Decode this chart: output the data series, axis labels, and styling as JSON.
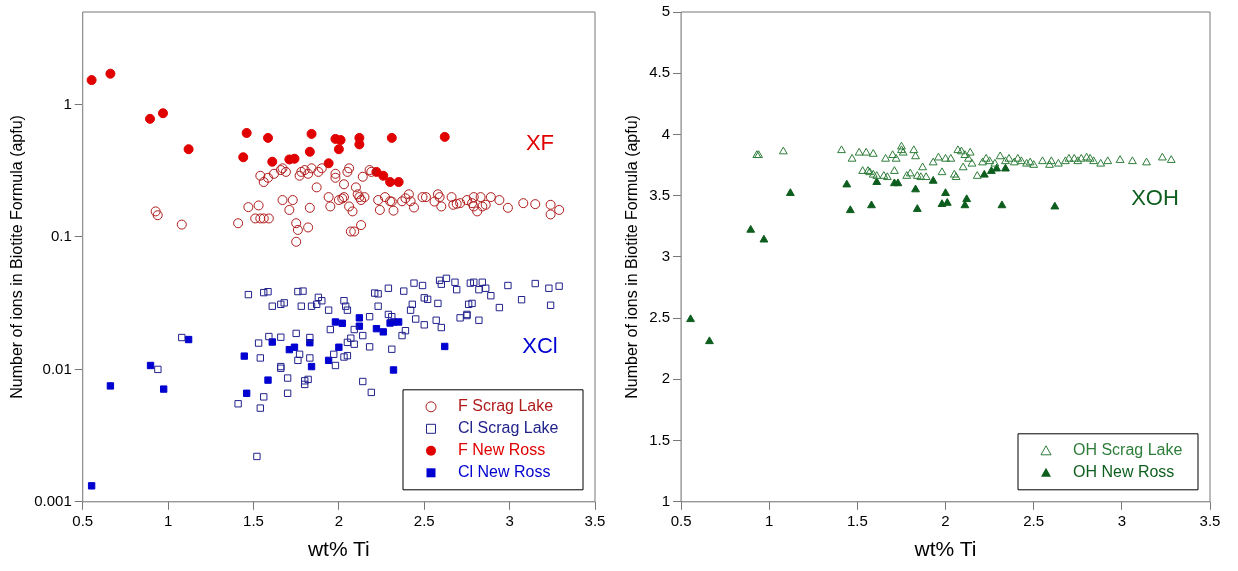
{
  "chart_data": [
    {
      "type": "scatter",
      "xlabel": "wt% Ti",
      "ylabel": "Number of ions in Biotite Formula (apfu)",
      "log": "y",
      "xlim": [
        0.5,
        3.5
      ],
      "xticks": [
        0.5,
        1,
        1.5,
        2,
        2.5,
        3,
        3.5
      ],
      "ylim": [
        0.001,
        5
      ],
      "yticks": [
        0.001,
        0.01,
        0.1,
        1
      ],
      "grid": false,
      "legend": "bottom right",
      "annotations": [
        "XF",
        "XCl"
      ],
      "series": [
        {
          "name": "F Scrag Lake",
          "color": "#b01c1c",
          "marker": "circle",
          "x": [
            0.927,
            0.939,
            1.08,
            1.41,
            1.47,
            1.53,
            1.51,
            1.54,
            1.56,
            1.59,
            1.54,
            1.56,
            1.585,
            1.62,
            1.66,
            1.67,
            1.69,
            1.67,
            1.71,
            1.73,
            1.75,
            1.76,
            1.75,
            1.77,
            1.78,
            1.8,
            1.82,
            1.82,
            1.83,
            1.84,
            1.87,
            1.88,
            1.9,
            1.94,
            1.95,
            1.98,
            1.98,
            2.0,
            2.02,
            2.03,
            2.03,
            2.05,
            2.06,
            2.06,
            2.08,
            2.07,
            2.09,
            2.1,
            2.11,
            2.12,
            2.13,
            2.15,
            2.13,
            2.14,
            2.18,
            2.19,
            2.23,
            2.24,
            2.27,
            2.3,
            2.31,
            2.32,
            2.37,
            2.39,
            2.41,
            2.42,
            2.44,
            2.49,
            2.51,
            2.56,
            2.58,
            2.59,
            2.6,
            2.66,
            2.67,
            2.69,
            2.71,
            2.75,
            2.78,
            2.79,
            2.83,
            2.79,
            2.81,
            2.84,
            2.86,
            2.89,
            2.94,
            2.99,
            3.08,
            3.15,
            3.24,
            3.24,
            3.29
          ],
          "values": [
            0.156,
            0.146,
            0.124,
            0.127,
            0.168,
            0.173,
            0.138,
            0.138,
            0.138,
            0.138,
            0.29,
            0.26,
            0.28,
            0.3,
            0.32,
            0.33,
            0.31,
            0.19,
            0.16,
            0.19,
            0.127,
            0.113,
            0.092,
            0.29,
            0.31,
            0.32,
            0.3,
            0.118,
            0.166,
            0.33,
            0.237,
            0.31,
            0.33,
            0.2,
            0.17,
            0.3,
            0.28,
            0.19,
            0.195,
            0.2,
            0.25,
            0.31,
            0.33,
            0.17,
            0.156,
            0.11,
            0.11,
            0.237,
            0.21,
            0.2,
            0.19,
            0.2,
            0.123,
            0.285,
            0.32,
            0.31,
            0.19,
            0.16,
            0.2,
            0.186,
            0.185,
            0.158,
            0.186,
            0.196,
            0.21,
            0.186,
            0.167,
            0.2,
            0.2,
            0.185,
            0.21,
            0.2,
            0.17,
            0.2,
            0.175,
            0.178,
            0.18,
            0.19,
            0.18,
            0.2,
            0.2,
            0.17,
            0.156,
            0.17,
            0.175,
            0.2,
            0.19,
            0.166,
            0.18,
            0.177,
            0.175,
            0.148,
            0.16
          ]
        },
        {
          "name": "Cl Scrag Lake",
          "color": "#22228c",
          "marker": "square",
          "x": [
            1.08,
            0.94,
            1.41,
            1.54,
            1.52,
            1.47,
            1.56,
            1.585,
            1.53,
            1.54,
            1.56,
            1.61,
            1.66,
            1.68,
            1.59,
            1.66,
            1.66,
            1.66,
            1.7,
            1.7,
            1.76,
            1.79,
            1.78,
            1.75,
            1.76,
            1.77,
            1.8,
            1.82,
            1.8,
            1.84,
            1.87,
            1.88,
            1.9,
            1.83,
            1.83,
            1.94,
            1.95,
            1.98,
            1.97,
            2.03,
            2.04,
            2.05,
            2.05,
            2.07,
            2.09,
            2.03,
            2.05,
            2.09,
            2.14,
            2.14,
            2.19,
            2.18,
            2.18,
            2.21,
            2.23,
            2.23,
            2.29,
            2.29,
            2.31,
            2.31,
            2.37,
            2.39,
            2.38,
            2.44,
            2.42,
            2.43,
            2.45,
            2.49,
            2.5,
            2.52,
            2.5,
            2.58,
            2.59,
            2.6,
            2.63,
            2.68,
            2.57,
            2.6,
            2.69,
            2.71,
            2.75,
            2.75,
            2.76,
            2.78,
            2.77,
            2.79,
            2.84,
            2.82,
            2.86,
            2.82,
            2.89,
            2.94,
            2.99,
            3.07,
            3.15,
            3.23,
            3.29,
            3.24
          ],
          "values": [
            0.0174,
            0.01,
            0.0055,
            0.0051,
            0.0022,
            0.0367,
            0.038,
            0.0386,
            0.0158,
            0.0122,
            0.0062,
            0.03,
            0.031,
            0.0318,
            0.0177,
            0.0175,
            0.0102,
            0.0105,
            0.0086,
            0.0066,
            0.0387,
            0.039,
            0.03,
            0.0187,
            0.0117,
            0.013,
            0.0077,
            0.0084,
            0.0082,
            0.03,
            0.031,
            0.035,
            0.033,
            0.0122,
            0.0174,
            0.028,
            0.02,
            0.0107,
            0.013,
            0.033,
            0.03,
            0.028,
            0.016,
            0.0172,
            0.0155,
            0.0124,
            0.0127,
            0.02,
            0.018,
            0.0081,
            0.0067,
            0.0148,
            0.025,
            0.0377,
            0.0372,
            0.03,
            0.041,
            0.026,
            0.025,
            0.0142,
            0.018,
            0.0196,
            0.039,
            0.0448,
            0.028,
            0.031,
            0.024,
            0.043,
            0.0347,
            0.0338,
            0.0217,
            0.0315,
            0.047,
            0.044,
            0.0487,
            0.0455,
            0.0235,
            0.0207,
            0.04,
            0.0245,
            0.026,
            0.0255,
            0.031,
            0.0315,
            0.0448,
            0.0455,
            0.0455,
            0.04,
            0.041,
            0.0235,
            0.036,
            0.0293,
            0.043,
            0.0336,
            0.0445,
            0.041,
            0.0425,
            0.0305
          ]
        },
        {
          "name": "F New Ross",
          "color": "#e00000",
          "marker": "circle",
          "x": [
            0.552,
            0.662,
            0.894,
            0.97,
            1.12,
            1.46,
            1.44,
            1.585,
            1.61,
            1.71,
            1.74,
            1.84,
            1.83,
            1.94,
            1.98,
            2.01,
            2.0,
            2.12,
            2.12,
            2.31,
            2.62,
            2.22,
            2.26,
            2.3,
            2.35
          ],
          "values": [
            1.53,
            1.71,
            0.78,
            0.86,
            0.46,
            0.61,
            0.4,
            0.56,
            0.37,
            0.385,
            0.39,
            0.6,
            0.44,
            0.36,
            0.55,
            0.54,
            0.46,
            0.56,
            0.5,
            0.56,
            0.57,
            0.31,
            0.29,
            0.26,
            0.26
          ]
        },
        {
          "name": "Cl New Ross",
          "color": "#0000d0",
          "marker": "square",
          "x": [
            0.552,
            0.662,
            0.897,
            0.974,
            1.12,
            1.446,
            1.46,
            1.585,
            1.61,
            1.71,
            1.74,
            1.83,
            1.84,
            1.94,
            1.98,
            2.02,
            2.0,
            2.12,
            2.12,
            2.22,
            2.26,
            2.3,
            2.32,
            2.35,
            2.32,
            2.62
          ],
          "values": [
            0.00132,
            0.0075,
            0.0107,
            0.0071,
            0.0168,
            0.0126,
            0.0066,
            0.0083,
            0.0161,
            0.0141,
            0.0147,
            0.0159,
            0.0105,
            0.0117,
            0.0228,
            0.0223,
            0.0147,
            0.0245,
            0.0212,
            0.0203,
            0.0192,
            0.0224,
            0.0228,
            0.0228,
            0.0099,
            0.0149
          ]
        }
      ]
    },
    {
      "type": "scatter",
      "xlabel": "wt% Ti",
      "ylabel": "Number of ions in Biotite Formula (apfu)",
      "xlim": [
        0.5,
        3.5
      ],
      "xticks": [
        0.5,
        1,
        1.5,
        2,
        2.5,
        3,
        3.5
      ],
      "ylim": [
        1,
        5
      ],
      "yticks": [
        1,
        1.5,
        2,
        2.5,
        3,
        3.5,
        4,
        4.5,
        5
      ],
      "grid": false,
      "legend": "bottom right",
      "annotations": [
        "XOH"
      ],
      "series": [
        {
          "name": "OH Scrag Lake",
          "color": "#2e7d3a",
          "marker": "triangle",
          "x": [
            0.93,
            0.94,
            1.08,
            1.41,
            1.47,
            1.51,
            1.55,
            1.53,
            1.56,
            1.57,
            1.59,
            1.59,
            1.61,
            1.65,
            1.67,
            1.66,
            1.7,
            1.71,
            1.72,
            1.75,
            1.75,
            1.76,
            1.78,
            1.8,
            1.82,
            1.83,
            1.84,
            1.86,
            1.89,
            1.87,
            1.93,
            1.96,
            1.98,
            2.0,
            2.03,
            2.05,
            2.06,
            2.07,
            2.09,
            2.11,
            2.1,
            2.13,
            2.14,
            2.15,
            2.18,
            2.21,
            2.23,
            2.25,
            2.28,
            2.31,
            2.34,
            2.36,
            2.39,
            2.41,
            2.43,
            2.46,
            2.48,
            2.5,
            2.55,
            2.59,
            2.6,
            2.64,
            2.68,
            2.7,
            2.73,
            2.75,
            2.77,
            2.8,
            2.82,
            2.84,
            2.88,
            2.92,
            2.99,
            3.06,
            3.14,
            3.23,
            3.28
          ],
          "values": [
            3.83,
            3.83,
            3.86,
            3.87,
            3.8,
            3.85,
            3.85,
            3.7,
            3.7,
            3.69,
            3.84,
            3.67,
            3.66,
            3.66,
            3.65,
            3.8,
            3.83,
            3.7,
            3.8,
            3.9,
            3.87,
            3.85,
            3.66,
            3.68,
            3.87,
            3.82,
            3.66,
            3.65,
            3.65,
            3.73,
            3.77,
            3.81,
            3.69,
            3.8,
            3.8,
            3.67,
            3.65,
            3.87,
            3.86,
            3.83,
            3.73,
            3.8,
            3.85,
            3.76,
            3.66,
            3.77,
            3.8,
            3.78,
            3.76,
            3.82,
            3.78,
            3.8,
            3.77,
            3.8,
            3.78,
            3.76,
            3.77,
            3.75,
            3.78,
            3.75,
            3.78,
            3.76,
            3.78,
            3.8,
            3.8,
            3.78,
            3.8,
            3.81,
            3.8,
            3.78,
            3.76,
            3.78,
            3.79,
            3.78,
            3.77,
            3.81,
            3.79
          ]
        },
        {
          "name": "OH New Ross",
          "color": "#0d5e1e",
          "marker": "triangle",
          "x": [
            0.554,
            0.661,
            0.895,
            0.97,
            1.12,
            1.44,
            1.46,
            1.58,
            1.61,
            1.71,
            1.73,
            1.83,
            1.84,
            1.93,
            1.98,
            2.01,
            2.0,
            2.11,
            2.12,
            2.22,
            2.26,
            2.29,
            2.34,
            2.32,
            2.62
          ],
          "values": [
            2.49,
            2.31,
            3.22,
            3.14,
            3.52,
            3.59,
            3.38,
            3.42,
            3.61,
            3.6,
            3.6,
            3.55,
            3.39,
            3.62,
            3.43,
            3.44,
            3.52,
            3.42,
            3.47,
            3.67,
            3.7,
            3.72,
            3.72,
            3.42,
            3.41
          ]
        }
      ]
    }
  ]
}
